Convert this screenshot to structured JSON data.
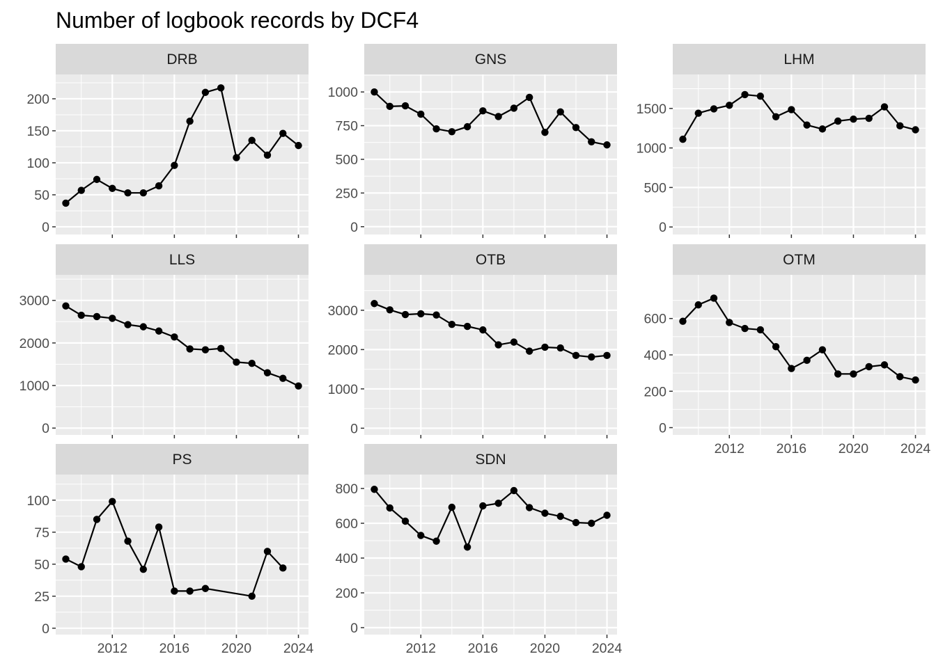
{
  "chart_data": {
    "type": "line",
    "title": "Number of logbook records by DCF4",
    "xlabel": "",
    "ylabel": "",
    "x_ticks": [
      2012,
      2016,
      2020,
      2024
    ],
    "facets": [
      {
        "name": "DRB",
        "ylim": [
          -12,
          238
        ],
        "y_ticks": [
          0,
          50,
          100,
          150,
          200
        ],
        "points": [
          [
            2009,
            37
          ],
          [
            2010,
            57
          ],
          [
            2011,
            74
          ],
          [
            2012,
            60
          ],
          [
            2013,
            53
          ],
          [
            2014,
            53
          ],
          [
            2015,
            64
          ],
          [
            2016,
            96
          ],
          [
            2017,
            165
          ],
          [
            2018,
            210
          ],
          [
            2019,
            217
          ],
          [
            2020,
            108
          ],
          [
            2021,
            135
          ],
          [
            2022,
            112
          ],
          [
            2023,
            146
          ],
          [
            2024,
            127
          ]
        ]
      },
      {
        "name": "GNS",
        "ylim": [
          -58,
          1130
        ],
        "y_ticks": [
          0,
          250,
          500,
          750,
          1000
        ],
        "points": [
          [
            2009,
            1000
          ],
          [
            2010,
            893
          ],
          [
            2011,
            897
          ],
          [
            2012,
            835
          ],
          [
            2013,
            726
          ],
          [
            2014,
            705
          ],
          [
            2015,
            742
          ],
          [
            2016,
            860
          ],
          [
            2017,
            818
          ],
          [
            2018,
            880
          ],
          [
            2019,
            960
          ],
          [
            2020,
            700
          ],
          [
            2021,
            852
          ],
          [
            2022,
            736
          ],
          [
            2023,
            630
          ],
          [
            2024,
            607
          ]
        ]
      },
      {
        "name": "LHM",
        "ylim": [
          -95,
          1930
        ],
        "y_ticks": [
          0,
          500,
          1000,
          1500
        ],
        "points": [
          [
            2009,
            1110
          ],
          [
            2010,
            1440
          ],
          [
            2011,
            1495
          ],
          [
            2012,
            1540
          ],
          [
            2013,
            1675
          ],
          [
            2014,
            1655
          ],
          [
            2015,
            1395
          ],
          [
            2016,
            1485
          ],
          [
            2017,
            1290
          ],
          [
            2018,
            1240
          ],
          [
            2019,
            1340
          ],
          [
            2020,
            1365
          ],
          [
            2021,
            1375
          ],
          [
            2022,
            1520
          ],
          [
            2023,
            1280
          ],
          [
            2024,
            1230
          ]
        ]
      },
      {
        "name": "LLS",
        "ylim": [
          -160,
          3600
        ],
        "y_ticks": [
          0,
          1000,
          2000,
          3000
        ],
        "points": [
          [
            2009,
            2870
          ],
          [
            2010,
            2650
          ],
          [
            2011,
            2620
          ],
          [
            2012,
            2580
          ],
          [
            2013,
            2430
          ],
          [
            2014,
            2380
          ],
          [
            2015,
            2280
          ],
          [
            2016,
            2140
          ],
          [
            2017,
            1860
          ],
          [
            2018,
            1840
          ],
          [
            2019,
            1870
          ],
          [
            2020,
            1550
          ],
          [
            2021,
            1520
          ],
          [
            2022,
            1300
          ],
          [
            2023,
            1170
          ],
          [
            2024,
            990
          ]
        ]
      },
      {
        "name": "OTB",
        "ylim": [
          -170,
          3900
        ],
        "y_ticks": [
          0,
          1000,
          2000,
          3000
        ],
        "points": [
          [
            2009,
            3170
          ],
          [
            2010,
            3010
          ],
          [
            2011,
            2890
          ],
          [
            2012,
            2910
          ],
          [
            2013,
            2880
          ],
          [
            2014,
            2640
          ],
          [
            2015,
            2590
          ],
          [
            2016,
            2500
          ],
          [
            2017,
            2120
          ],
          [
            2018,
            2190
          ],
          [
            2019,
            1960
          ],
          [
            2020,
            2060
          ],
          [
            2021,
            2040
          ],
          [
            2022,
            1850
          ],
          [
            2023,
            1810
          ],
          [
            2024,
            1850
          ]
        ]
      },
      {
        "name": "OTM",
        "ylim": [
          -40,
          840
        ],
        "y_ticks": [
          0,
          200,
          400,
          600
        ],
        "points": [
          [
            2009,
            585
          ],
          [
            2010,
            675
          ],
          [
            2011,
            712
          ],
          [
            2012,
            578
          ],
          [
            2013,
            545
          ],
          [
            2014,
            538
          ],
          [
            2015,
            445
          ],
          [
            2016,
            325
          ],
          [
            2017,
            370
          ],
          [
            2018,
            428
          ],
          [
            2019,
            295
          ],
          [
            2020,
            295
          ],
          [
            2021,
            335
          ],
          [
            2022,
            345
          ],
          [
            2023,
            280
          ],
          [
            2024,
            262
          ]
        ]
      },
      {
        "name": "PS",
        "ylim": [
          -5,
          120
        ],
        "y_ticks": [
          0,
          25,
          50,
          75,
          100
        ],
        "points": [
          [
            2009,
            54
          ],
          [
            2010,
            48
          ],
          [
            2011,
            85
          ],
          [
            2012,
            99
          ],
          [
            2013,
            68
          ],
          [
            2014,
            46
          ],
          [
            2015,
            79
          ],
          [
            2016,
            29
          ],
          [
            2017,
            29
          ],
          [
            2018,
            31
          ],
          [
            2021,
            25
          ],
          [
            2022,
            60
          ],
          [
            2023,
            47
          ]
        ]
      },
      {
        "name": "SDN",
        "ylim": [
          -40,
          880
        ],
        "y_ticks": [
          0,
          200,
          400,
          600,
          800
        ],
        "points": [
          [
            2009,
            795
          ],
          [
            2010,
            688
          ],
          [
            2011,
            612
          ],
          [
            2012,
            530
          ],
          [
            2013,
            497
          ],
          [
            2014,
            692
          ],
          [
            2015,
            463
          ],
          [
            2016,
            700
          ],
          [
            2017,
            715
          ],
          [
            2018,
            788
          ],
          [
            2019,
            690
          ],
          [
            2020,
            658
          ],
          [
            2021,
            640
          ],
          [
            2022,
            604
          ],
          [
            2023,
            600
          ],
          [
            2024,
            646
          ]
        ]
      }
    ],
    "x_axis_shown_on": [
      "OTM",
      "PS",
      "SDN"
    ],
    "colors": {
      "panel_bg": "#ebebeb",
      "strip_bg": "#d9d9d9",
      "grid": "#ffffff",
      "series": "#000000",
      "text": "#4d4d4d"
    }
  }
}
